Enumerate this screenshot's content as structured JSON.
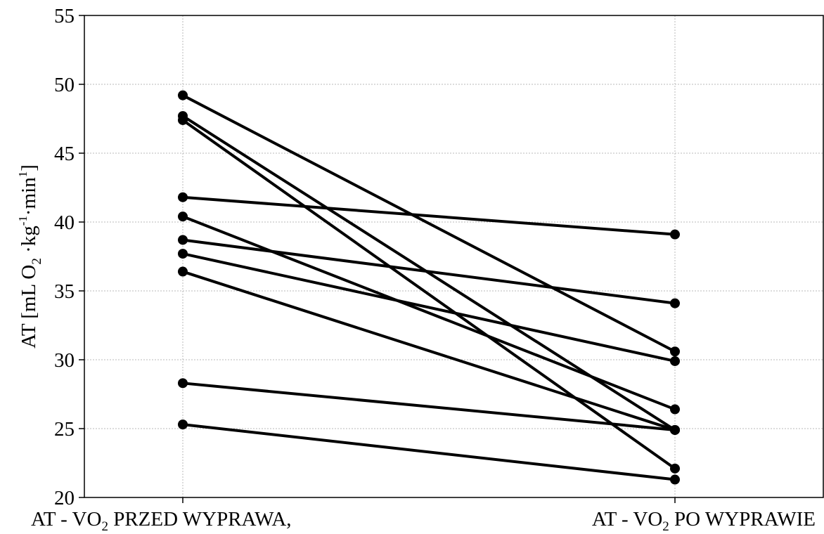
{
  "chart_data": {
    "type": "line",
    "categories": [
      "AT - VO2 PRZED WYPRAWA,",
      "AT - VO2 PO WYPRAWIE"
    ],
    "category_labels": [
      {
        "prefix": "AT - VO",
        "sub": "2",
        "suffix": "  PRZED WYPRAWA,"
      },
      {
        "prefix": "AT - VO",
        "sub": "2",
        "suffix": " PO WYPRAWIE"
      }
    ],
    "ylabel_parts": {
      "a": "AT [mL O",
      "sub": "2",
      "b": " ·kg",
      "sup1": "-1",
      "c": "·min",
      "sup2": "1",
      "d": "]"
    },
    "ylim": [
      20,
      55
    ],
    "yticks": [
      20,
      25,
      30,
      35,
      40,
      45,
      50,
      55
    ],
    "grid": true,
    "line_color": "#000000",
    "series": [
      {
        "values": [
          49.2,
          30.6
        ]
      },
      {
        "values": [
          47.7,
          24.9
        ]
      },
      {
        "values": [
          47.4,
          22.1
        ]
      },
      {
        "values": [
          41.8,
          39.1
        ]
      },
      {
        "values": [
          40.4,
          26.4
        ]
      },
      {
        "values": [
          38.7,
          34.1
        ]
      },
      {
        "values": [
          37.7,
          29.9
        ]
      },
      {
        "values": [
          36.4,
          24.9
        ]
      },
      {
        "values": [
          28.3,
          24.9
        ]
      },
      {
        "values": [
          25.3,
          21.3
        ]
      }
    ]
  }
}
